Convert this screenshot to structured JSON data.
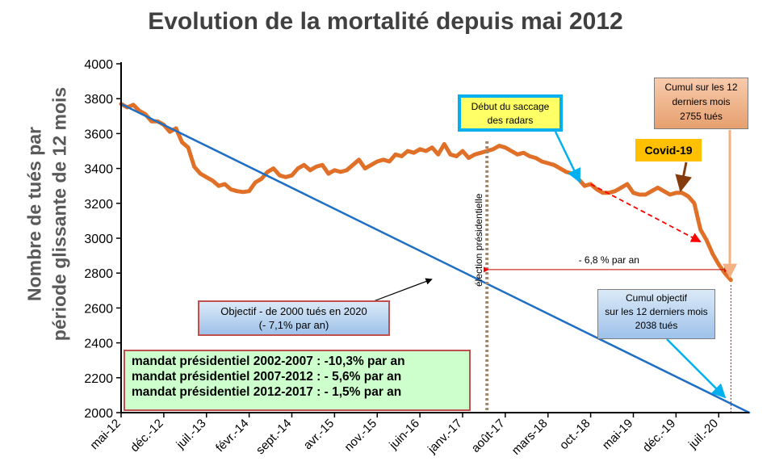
{
  "chart_data": {
    "type": "line",
    "title": "Evolution de la mortalité depuis mai 2012",
    "ylabel": [
      "Nombre de tués par",
      "période glissante de 12 mois"
    ],
    "xlabel": "",
    "ylim": [
      2000,
      4000
    ],
    "yticks": [
      2000,
      2200,
      2400,
      2600,
      2800,
      3000,
      3200,
      3400,
      3600,
      3800,
      4000
    ],
    "x_range": [
      "2012-05",
      "2020-12"
    ],
    "xtick_labels": [
      "mai-12",
      "déc.-12",
      "juil.-13",
      "févr.-14",
      "sept.-14",
      "avr.-15",
      "nov.-15",
      "juin-16",
      "janv.-17",
      "août-17",
      "mars-18",
      "oct.-18",
      "mai-19",
      "déc.-19",
      "juil.-20"
    ],
    "series": [
      {
        "name": "",
        "color": "#E07028",
        "points": [
          [
            "2012-05",
            3770
          ],
          [
            "2012-06",
            3750
          ],
          [
            "2012-07",
            3765
          ],
          [
            "2012-08",
            3730
          ],
          [
            "2012-09",
            3710
          ],
          [
            "2012-10",
            3670
          ],
          [
            "2012-11",
            3670
          ],
          [
            "2012-12",
            3650
          ],
          [
            "2013-01",
            3610
          ],
          [
            "2013-02",
            3630
          ],
          [
            "2013-03",
            3550
          ],
          [
            "2013-04",
            3520
          ],
          [
            "2013-05",
            3410
          ],
          [
            "2013-06",
            3370
          ],
          [
            "2013-07",
            3350
          ],
          [
            "2013-08",
            3330
          ],
          [
            "2013-09",
            3300
          ],
          [
            "2013-10",
            3310
          ],
          [
            "2013-11",
            3280
          ],
          [
            "2013-12",
            3270
          ],
          [
            "2014-01",
            3265
          ],
          [
            "2014-02",
            3270
          ],
          [
            "2014-03",
            3320
          ],
          [
            "2014-04",
            3340
          ],
          [
            "2014-05",
            3380
          ],
          [
            "2014-06",
            3400
          ],
          [
            "2014-07",
            3360
          ],
          [
            "2014-08",
            3350
          ],
          [
            "2014-09",
            3360
          ],
          [
            "2014-10",
            3400
          ],
          [
            "2014-11",
            3420
          ],
          [
            "2014-12",
            3390
          ],
          [
            "2015-01",
            3410
          ],
          [
            "2015-02",
            3420
          ],
          [
            "2015-03",
            3370
          ],
          [
            "2015-04",
            3390
          ],
          [
            "2015-05",
            3380
          ],
          [
            "2015-06",
            3390
          ],
          [
            "2015-07",
            3420
          ],
          [
            "2015-08",
            3450
          ],
          [
            "2015-09",
            3400
          ],
          [
            "2015-10",
            3420
          ],
          [
            "2015-11",
            3440
          ],
          [
            "2015-12",
            3450
          ],
          [
            "2016-01",
            3440
          ],
          [
            "2016-02",
            3480
          ],
          [
            "2016-03",
            3470
          ],
          [
            "2016-04",
            3500
          ],
          [
            "2016-05",
            3490
          ],
          [
            "2016-06",
            3510
          ],
          [
            "2016-07",
            3500
          ],
          [
            "2016-08",
            3520
          ],
          [
            "2016-09",
            3480
          ],
          [
            "2016-10",
            3540
          ],
          [
            "2016-11",
            3480
          ],
          [
            "2016-12",
            3470
          ],
          [
            "2017-01",
            3500
          ],
          [
            "2017-02",
            3460
          ],
          [
            "2017-03",
            3480
          ],
          [
            "2017-04",
            3490
          ],
          [
            "2017-05",
            3500
          ],
          [
            "2017-06",
            3510
          ],
          [
            "2017-07",
            3530
          ],
          [
            "2017-08",
            3520
          ],
          [
            "2017-09",
            3500
          ],
          [
            "2017-10",
            3480
          ],
          [
            "2017-11",
            3490
          ],
          [
            "2017-12",
            3470
          ],
          [
            "2018-01",
            3460
          ],
          [
            "2018-02",
            3440
          ],
          [
            "2018-03",
            3430
          ],
          [
            "2018-04",
            3420
          ],
          [
            "2018-05",
            3400
          ],
          [
            "2018-06",
            3380
          ],
          [
            "2018-07",
            3370
          ],
          [
            "2018-08",
            3340
          ],
          [
            "2018-09",
            3300
          ],
          [
            "2018-10",
            3310
          ],
          [
            "2018-11",
            3280
          ],
          [
            "2018-12",
            3260
          ],
          [
            "2019-01",
            3260
          ],
          [
            "2019-02",
            3270
          ],
          [
            "2019-03",
            3290
          ],
          [
            "2019-04",
            3310
          ],
          [
            "2019-05",
            3260
          ],
          [
            "2019-06",
            3250
          ],
          [
            "2019-07",
            3250
          ],
          [
            "2019-08",
            3270
          ],
          [
            "2019-09",
            3290
          ],
          [
            "2019-10",
            3270
          ],
          [
            "2019-11",
            3250
          ],
          [
            "2019-12",
            3260
          ],
          [
            "2020-01",
            3260
          ],
          [
            "2020-02",
            3240
          ],
          [
            "2020-03",
            3200
          ],
          [
            "2020-04",
            3050
          ],
          [
            "2020-05",
            2990
          ],
          [
            "2020-06",
            2910
          ],
          [
            "2020-07",
            2850
          ],
          [
            "2020-08",
            2800
          ],
          [
            "2020-09",
            2760
          ]
        ]
      },
      {
        "name": "",
        "color": "#1F6FC5",
        "points": [
          [
            "2012-05",
            3770
          ],
          [
            "2020-12",
            2000
          ]
        ]
      }
    ],
    "annotations": {
      "objectif_text": [
        "Objectif - de 2000 tués en 2020",
        "(- 7,1% par an)"
      ],
      "radars_text": [
        "Début du saccage",
        "des radars"
      ],
      "cumul_text": [
        "Cumul sur les 12",
        "derniers mois",
        "2755 tués"
      ],
      "covid_text": "Covid-19",
      "cumul_obj_text": [
        "Cumul objectif",
        "sur les 12 derniers mois",
        "2038 tués"
      ],
      "mandat_lines": [
        "mandat présidentiel 2002-2007 : -10,3% par an",
        "mandat présidentiel 2007-2012 : - 5,6% par an",
        "mandat présidentiel 2012-2017 : - 1,5% par an"
      ],
      "election_label": "élection présidentielle",
      "election_date": "2017-05",
      "rate_label": "- 6,8 % par an",
      "rate_arrow_from": "2017-05",
      "rate_arrow_to": "2020-09",
      "rate_arrow_y": 2820,
      "trend_from": [
        "2018-10",
        3310
      ],
      "trend_to": [
        "2020-04",
        2980
      ],
      "end_marker_date": "2020-09"
    }
  }
}
